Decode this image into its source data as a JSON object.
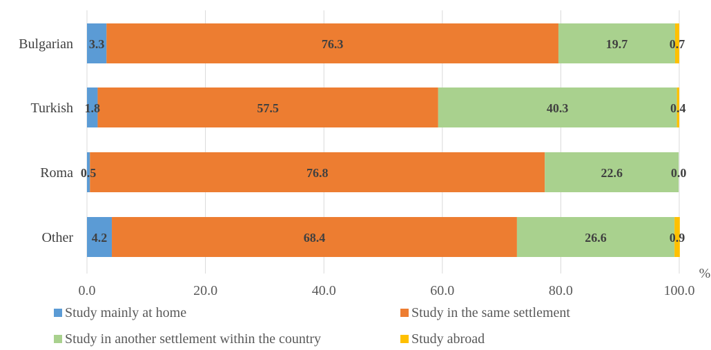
{
  "chart_data": {
    "type": "bar",
    "orientation": "horizontal",
    "stacked": true,
    "categories": [
      "Bulgarian",
      "Turkish",
      "Roma",
      "Other"
    ],
    "series": [
      {
        "name": "Study mainly at home",
        "color": "#5B9BD5",
        "values": [
          3.3,
          1.8,
          0.5,
          4.2
        ]
      },
      {
        "name": "Study in the same settlement",
        "color": "#ED7D31",
        "values": [
          76.3,
          57.5,
          76.8,
          68.4
        ]
      },
      {
        "name": "Study in another settlement within the country",
        "color": "#A9D18E",
        "values": [
          19.7,
          40.3,
          22.6,
          26.6
        ]
      },
      {
        "name": "Study abroad",
        "color": "#FFC000",
        "values": [
          0.7,
          0.4,
          0.0,
          0.9
        ]
      }
    ],
    "xlim": [
      0,
      100
    ],
    "xticks": [
      "0.0",
      "20.0",
      "40.0",
      "60.0",
      "80.0",
      "100.0"
    ],
    "xunit": "%",
    "grid": true,
    "legend": "bottom"
  }
}
